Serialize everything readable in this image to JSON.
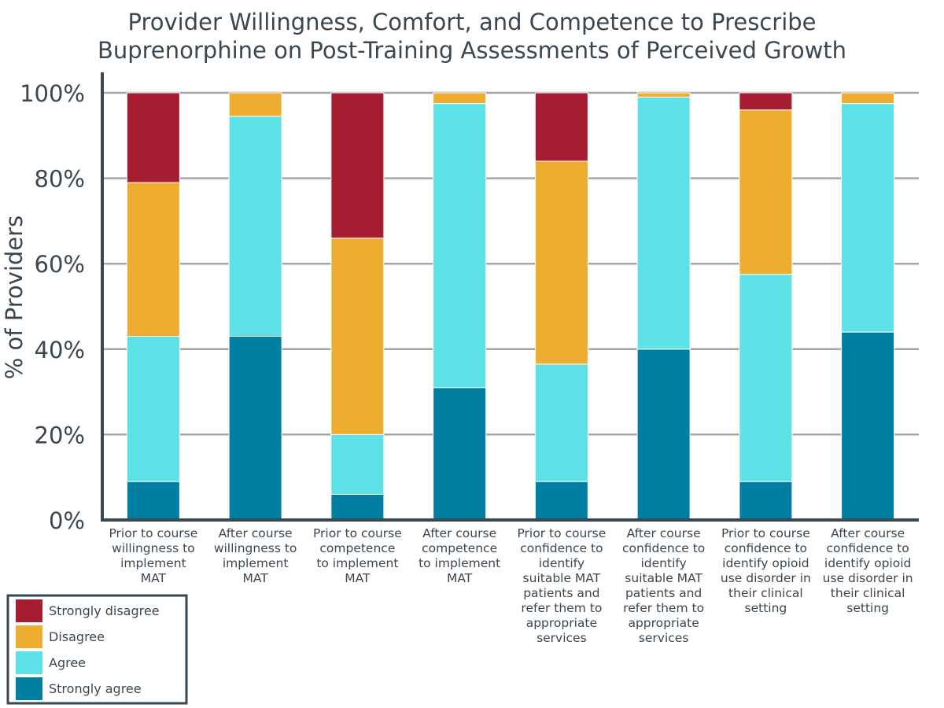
{
  "chart_data": {
    "type": "bar",
    "stacked": true,
    "title": "Provider Willingness, Comfort, and Competence to Prescribe Buprenorphine on Post-Training Assessments of Perceived Growth",
    "title_lines": [
      "Provider Willingness, Comfort, and Competence to Prescribe",
      "Buprenorphine on Post-Training Assessments of Perceived Growth"
    ],
    "ylabel": "% of Providers",
    "xlabel": "",
    "ylim": [
      0,
      100
    ],
    "yticks": [
      "0%",
      "20%",
      "40%",
      "60%",
      "80%",
      "100%"
    ],
    "grid": true,
    "legend_position": "bottom-left",
    "categories": [
      [
        "Prior to course",
        "willingness to",
        "implement",
        "MAT"
      ],
      [
        "After course",
        "willingness to",
        "implement",
        "MAT"
      ],
      [
        "Prior to course",
        "competence",
        "to implement",
        "MAT"
      ],
      [
        "After course",
        "competence",
        "to implement",
        "MAT"
      ],
      [
        "Prior to course",
        "confidence to",
        "identify",
        "suitable MAT",
        "patients and",
        "refer them to",
        "appropriate",
        "services"
      ],
      [
        "After course",
        "confidence to",
        "identify",
        "suitable MAT",
        "patients and",
        "refer them to",
        "appropriate",
        "services"
      ],
      [
        "Prior to course",
        "confidence to",
        "identify opioid",
        "use disorder in",
        "their clinical",
        "setting"
      ],
      [
        "After course",
        "confidence to",
        "identify opioid",
        "use disorder in",
        "their clinical",
        "setting"
      ]
    ],
    "series": [
      {
        "name": "Strongly agree",
        "color": "#007fa3",
        "values": [
          9,
          43,
          6,
          31,
          9,
          40,
          9,
          44
        ]
      },
      {
        "name": "Agree",
        "color": "#5ce1e6",
        "values": [
          34,
          51.5,
          14,
          66.5,
          27.5,
          59,
          48.5,
          53.5
        ]
      },
      {
        "name": "Disagree",
        "color": "#edad31",
        "values": [
          36,
          5.5,
          46,
          2.5,
          47.5,
          1,
          38.5,
          2.5
        ]
      },
      {
        "name": "Strongly disagree",
        "color": "#a61c31",
        "values": [
          21,
          0,
          34,
          0,
          16,
          0,
          4,
          0
        ]
      }
    ],
    "legend_order": [
      "Strongly disagree",
      "Disagree",
      "Agree",
      "Strongly agree"
    ],
    "colors": {
      "axis": "#3a4750",
      "grid": "#a6a6a6",
      "text": "#3a4750"
    }
  }
}
